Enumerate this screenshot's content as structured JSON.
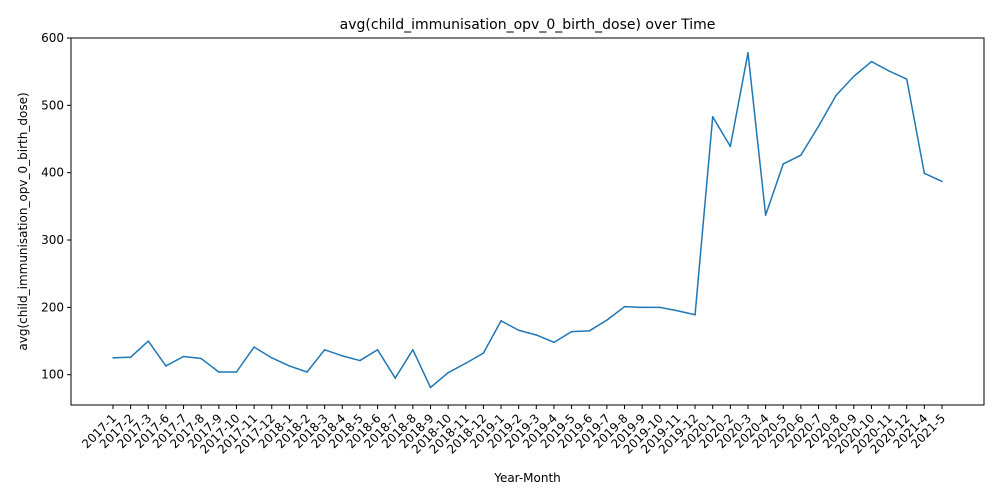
{
  "chart_data": {
    "type": "line",
    "title": "avg(child_immunisation_opv_0_birth_dose) over Time",
    "xlabel": "Year-Month",
    "ylabel": "avg(child_immunisation_opv_0_birth_dose)",
    "ylim": [
      55,
      600
    ],
    "yticks": [
      100,
      200,
      300,
      400,
      500,
      600
    ],
    "grid": false,
    "legend": "none",
    "series_color": "#1f77b4",
    "categories": [
      "2017-1",
      "2017-2",
      "2017-3",
      "2017-6",
      "2017-7",
      "2017-8",
      "2017-9",
      "2017-10",
      "2017-11",
      "2017-12",
      "2018-1",
      "2018-2",
      "2018-3",
      "2018-4",
      "2018-5",
      "2018-6",
      "2018-7",
      "2018-8",
      "2018-9",
      "2018-10",
      "2018-11",
      "2018-12",
      "2019-1",
      "2019-2",
      "2019-3",
      "2019-4",
      "2019-5",
      "2019-6",
      "2019-7",
      "2019-8",
      "2019-9",
      "2019-10",
      "2019-11",
      "2019-12",
      "2020-1",
      "2020-2",
      "2020-3",
      "2020-4",
      "2020-5",
      "2020-6",
      "2020-7",
      "2020-8",
      "2020-9",
      "2020-10",
      "2020-11",
      "2020-12",
      "2021-4",
      "2021-5"
    ],
    "values": [
      125,
      126,
      150,
      113,
      127,
      124,
      104,
      104,
      141,
      125,
      113,
      104,
      137,
      128,
      121,
      137,
      95,
      137,
      81,
      103,
      117,
      132,
      180,
      166,
      159,
      148,
      164,
      165,
      181,
      201,
      200,
      200,
      195,
      189,
      483,
      439,
      578,
      337,
      413,
      426,
      469,
      515,
      543,
      565,
      551,
      539,
      399,
      387
    ]
  }
}
